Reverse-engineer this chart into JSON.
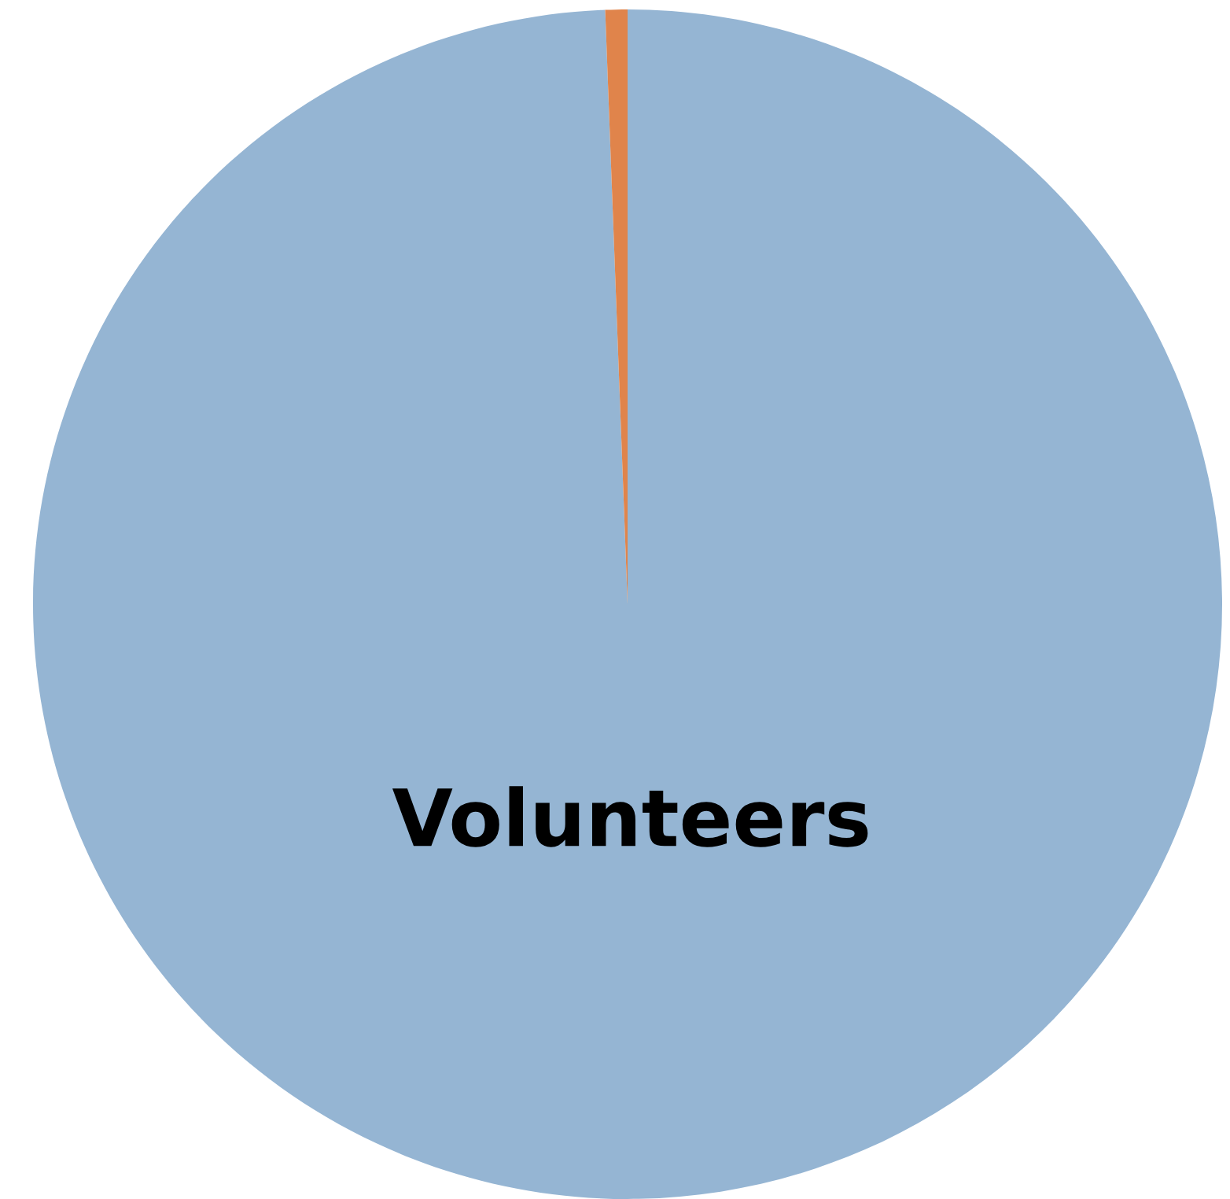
{
  "chart_data": {
    "type": "pie",
    "categories": [
      "Volunteers",
      null
    ],
    "values": [
      99.4,
      0.6
    ],
    "colors": [
      "#95b5d3",
      "#e0844b"
    ]
  }
}
